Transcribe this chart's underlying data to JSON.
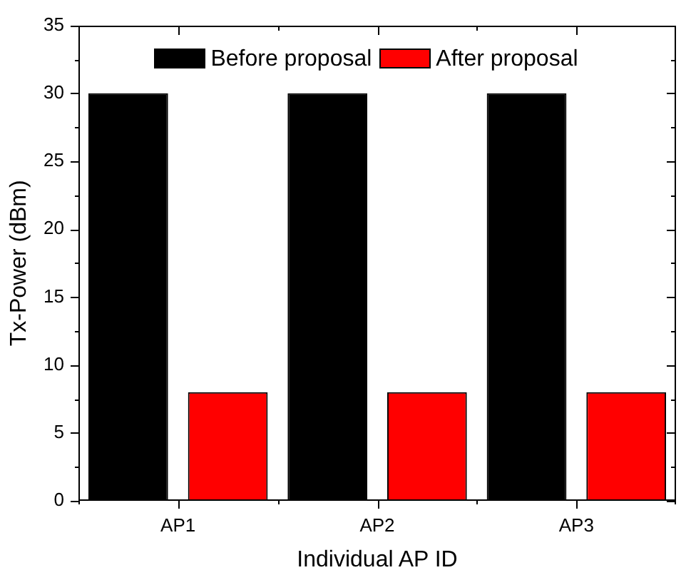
{
  "chart_data": {
    "type": "bar",
    "xlabel": "Individual AP ID",
    "ylabel": "Tx-Power (dBm)",
    "categories": [
      "AP1",
      "AP2",
      "AP3"
    ],
    "series": [
      {
        "name": "Before proposal",
        "color": "#000000",
        "values": [
          30,
          30,
          30
        ]
      },
      {
        "name": "After proposal",
        "color": "#ff0000",
        "values": [
          8,
          8,
          8
        ]
      }
    ],
    "ylim": [
      0,
      35
    ],
    "yticks": [
      0,
      {
        "value": 2.5,
        "label": null
      },
      5,
      {
        "value": 7.5,
        "label": null
      },
      10,
      {
        "value": 12.5,
        "label": null
      },
      15,
      {
        "value": 17.5,
        "label": null
      },
      20,
      {
        "value": 22.5,
        "label": null
      },
      25,
      {
        "value": 27.5,
        "label": null
      },
      30,
      {
        "value": 32.5,
        "label": null
      },
      35
    ],
    "legend": "top"
  }
}
